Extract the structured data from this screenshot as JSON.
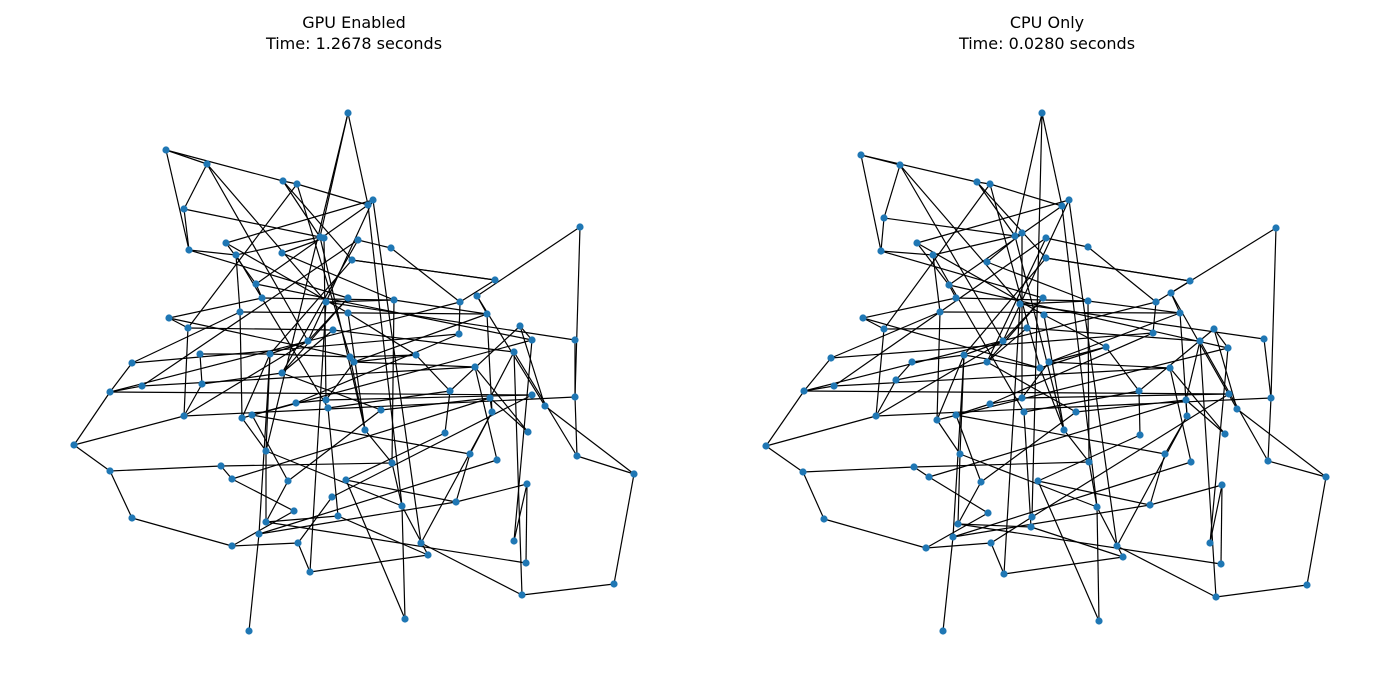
{
  "panels": [
    {
      "title": "GPU Enabled",
      "subtitle": "Time: 1.2678 seconds"
    },
    {
      "title": "CPU Only",
      "subtitle": "Time: 0.0280 seconds"
    }
  ],
  "colors": {
    "node": "#1f77b4",
    "edge": "#000000",
    "background": "#ffffff"
  }
}
